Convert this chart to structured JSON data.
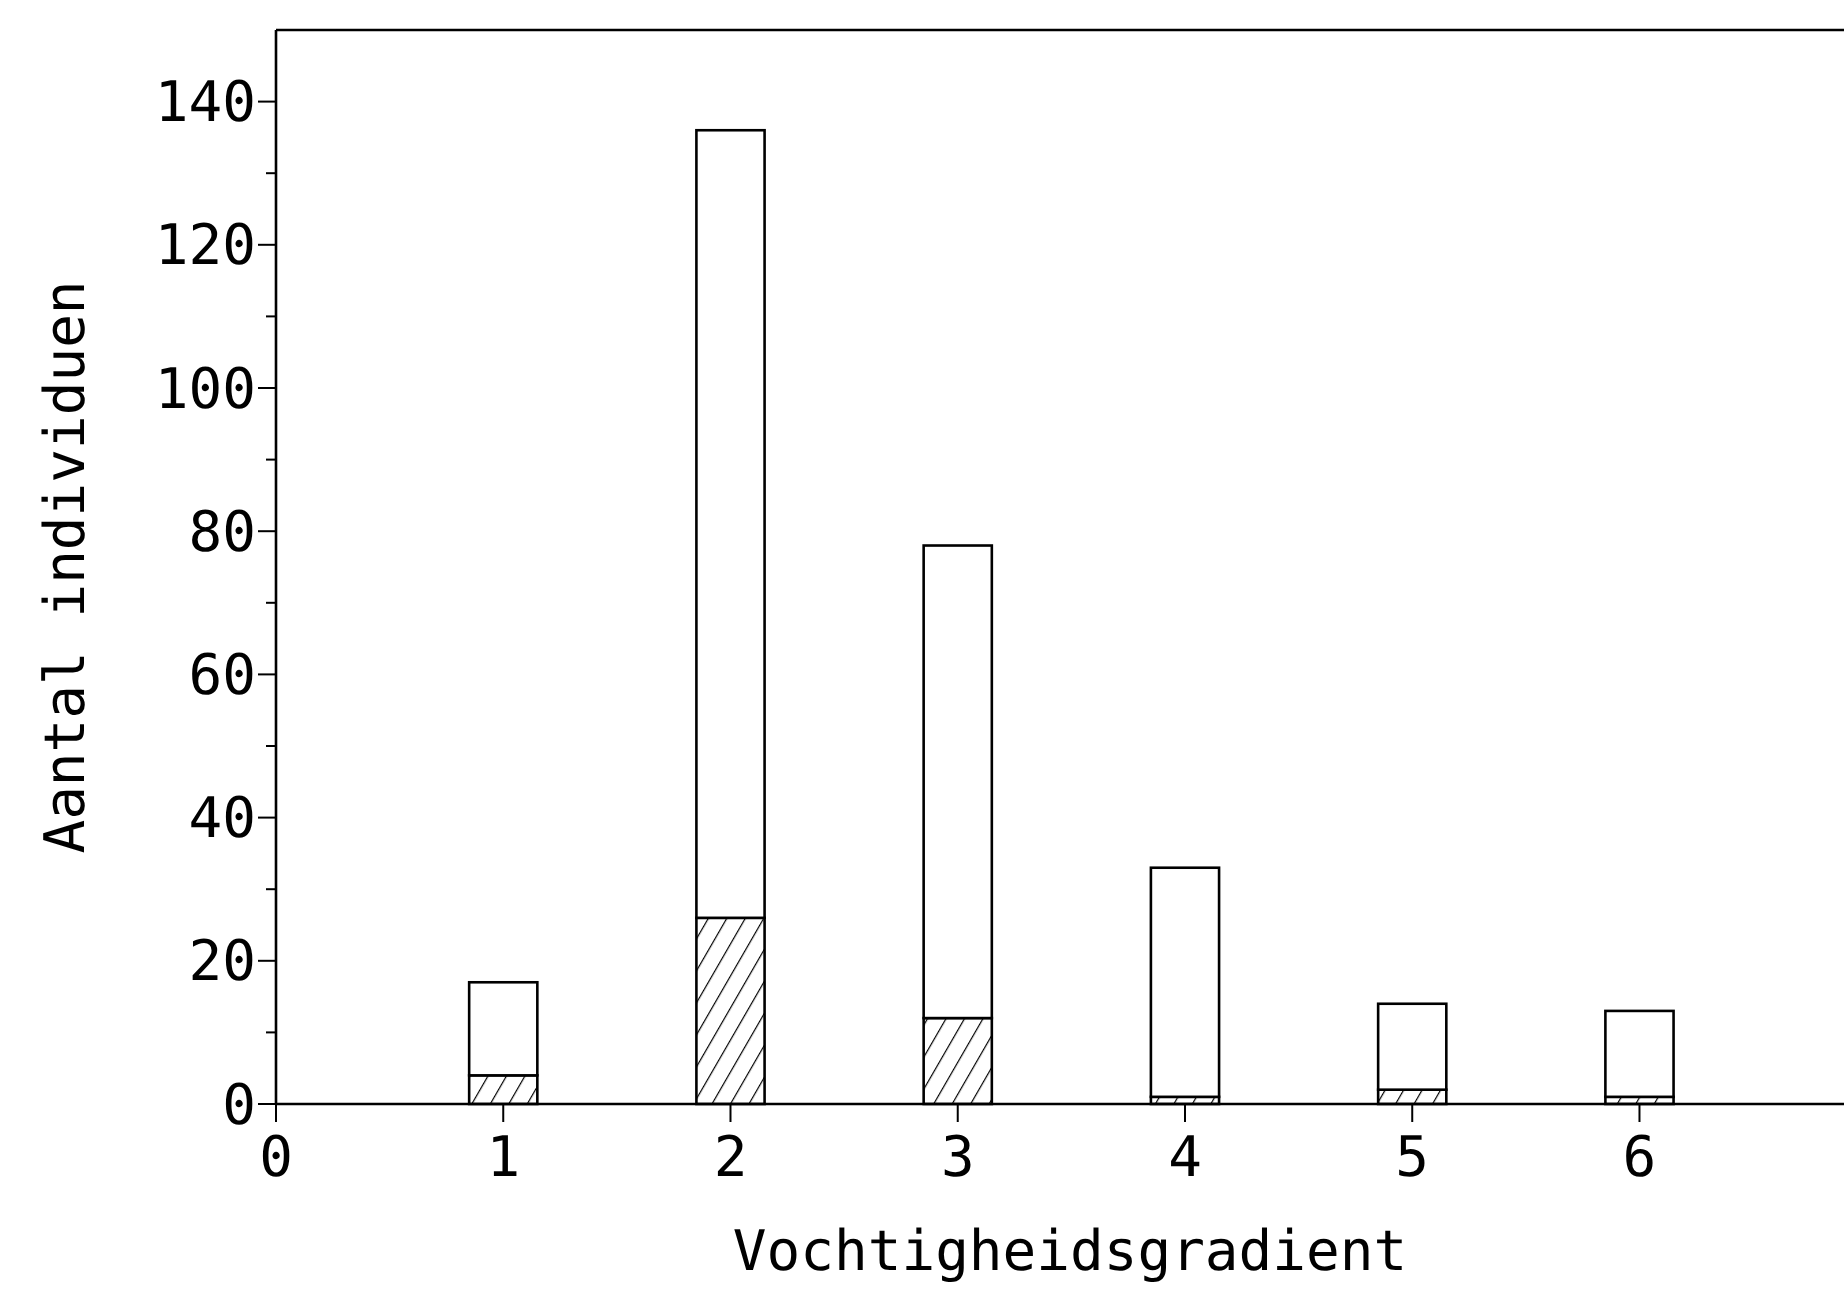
{
  "chart_data": {
    "type": "bar",
    "stacked": true,
    "xlabel": "Vochtigheidsgradient",
    "ylabel": "Aantal individuen",
    "x": [
      1,
      2,
      3,
      4,
      5,
      6
    ],
    "series": [
      {
        "color": "#000000",
        "values": [
          4,
          26,
          12,
          1,
          2,
          1
        ]
      },
      {
        "color": "#ffffff",
        "values": [
          13,
          110,
          66,
          32,
          12,
          12
        ]
      }
    ],
    "xlim": [
      0,
      6.9
    ],
    "xticks": [
      0,
      1,
      2,
      3,
      4,
      5,
      6
    ],
    "ylim": [
      0,
      150
    ],
    "yticks": [
      0,
      {
        "value": 10,
        "label": null
      },
      20,
      {
        "value": 30,
        "label": null
      },
      40,
      {
        "value": 50,
        "label": null
      },
      60,
      {
        "value": 70,
        "label": null
      },
      80,
      {
        "value": 90,
        "label": null
      },
      100,
      {
        "value": 110,
        "label": null
      },
      120,
      {
        "value": 130,
        "label": null
      },
      140
    ],
    "grid": false
  }
}
